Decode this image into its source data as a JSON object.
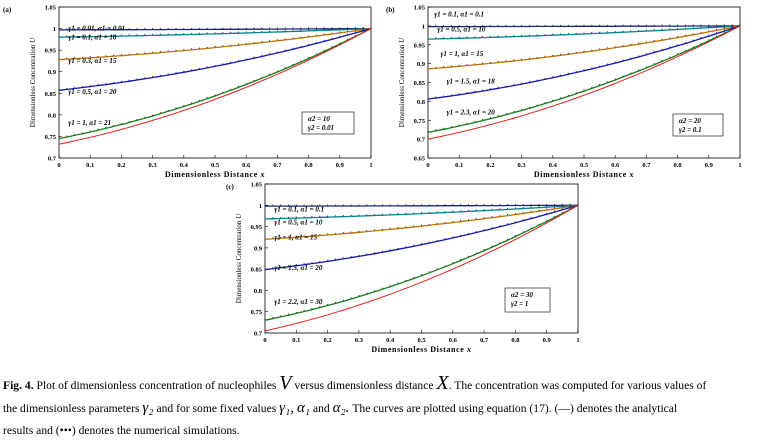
{
  "chart_data": [
    {
      "type": "line",
      "panel_label": "(a)",
      "xlabel": "Dimensionless Distance",
      "xlabel_symbol": "x",
      "ylabel": "Dimensionless Concentration",
      "ylabel_symbol": "U",
      "xlim": [
        0,
        1
      ],
      "ylim": [
        0.7,
        1.05
      ],
      "xticks": [
        "0",
        "0.1",
        "0.2",
        "0.3",
        "0.4",
        "0.5",
        "0.6",
        "0.7",
        "0.8",
        "0.9",
        "1"
      ],
      "yticks": [
        "0.7",
        "0.75",
        "0.8",
        "0.85",
        "0.9",
        "0.95",
        "1",
        "1.05"
      ],
      "series_note": "(—) analytical, (•••) numerical",
      "series": [
        {
          "name": "γ1 = 0.01, α1 = 0.01",
          "u0": 0.997,
          "color": "#1a237e"
        },
        {
          "name": "γ1 = 0.1, α1 = 10",
          "u0": 0.98,
          "color": "#00838f"
        },
        {
          "name": "γ1 = 0.3, α1 = 15",
          "u0": 0.928,
          "color": "#c07000"
        },
        {
          "name": "γ1 = 0.5, α1 = 20",
          "u0": 0.857,
          "color": "#1515b8"
        },
        {
          "name": "γ1 = 1, α1 = 21",
          "u0": 0.745,
          "color": "#1b7a1b"
        },
        {
          "name": "analytical lower",
          "u0": 0.732,
          "color": "#e02020"
        }
      ],
      "fixed_params": [
        "α2 = 10",
        "γ2 = 0.01"
      ]
    },
    {
      "type": "line",
      "panel_label": "(b)",
      "xlabel": "Dimensionless Distance",
      "xlabel_symbol": "x",
      "ylabel": "Dimensionless Concentration",
      "ylabel_symbol": "U",
      "xlim": [
        0,
        1
      ],
      "ylim": [
        0.65,
        1.05
      ],
      "xticks": [
        "0",
        "0.1",
        "0.2",
        "0.3",
        "0.4",
        "0.5",
        "0.6",
        "0.7",
        "0.8",
        "0.9",
        "1"
      ],
      "yticks": [
        "0.65",
        "0.7",
        "0.75",
        "0.8",
        "0.85",
        "0.9",
        "0.95",
        "1",
        "1.05"
      ],
      "series_note": "(—) analytical, (•••) numerical",
      "series": [
        {
          "name": "γ1 = 0.1, α1 = 0.1",
          "u0": 0.998,
          "color": "#1a237e"
        },
        {
          "name": "γ1 = 0.5, α1 = 10",
          "u0": 0.965,
          "color": "#00838f"
        },
        {
          "name": "γ1 = 1, α1 = 15",
          "u0": 0.886,
          "color": "#c07000"
        },
        {
          "name": "γ1 = 1.5, α1 = 18",
          "u0": 0.806,
          "color": "#1515b8"
        },
        {
          "name": "γ1 = 2.3, α1 = 20",
          "u0": 0.718,
          "color": "#1b7a1b"
        },
        {
          "name": "analytical lower",
          "u0": 0.7,
          "color": "#e02020"
        }
      ],
      "fixed_params": [
        "α2 = 20",
        "γ2 = 0.1"
      ]
    },
    {
      "type": "line",
      "panel_label": "(c)",
      "xlabel": "Dimensionless Distance",
      "xlabel_symbol": "x",
      "ylabel": "Dimensionless Concentration",
      "ylabel_symbol": "U",
      "xlim": [
        0,
        1
      ],
      "ylim": [
        0.7,
        1.05
      ],
      "xticks": [
        "0",
        "0.1",
        "0.2",
        "0.3",
        "0.4",
        "0.5",
        "0.6",
        "0.7",
        "0.8",
        "0.9",
        "1"
      ],
      "yticks": [
        "0.7",
        "0.75",
        "0.8",
        "0.85",
        "0.9",
        "0.95",
        "1",
        "1.05"
      ],
      "series_note": "(—) analytical, (•••) numerical",
      "series": [
        {
          "name": "γ1 = 0.1, α1 = 0.1",
          "u0": 0.998,
          "color": "#1a237e"
        },
        {
          "name": "γ1 = 0.5, α1 = 10",
          "u0": 0.968,
          "color": "#00838f"
        },
        {
          "name": "γ1 = 1, α1 = 15",
          "u0": 0.92,
          "color": "#c07000"
        },
        {
          "name": "γ1 = 1.5, α1 = 20",
          "u0": 0.849,
          "color": "#1515b8"
        },
        {
          "name": "γ1 = 2.2, α1 = 30",
          "u0": 0.73,
          "color": "#1b7a1b"
        },
        {
          "name": "analytical lower",
          "u0": 0.705,
          "color": "#e02020"
        }
      ],
      "fixed_params": [
        "α2 = 30",
        "γ2 = 1"
      ]
    }
  ],
  "caption": {
    "label": "Fig. 4.",
    "text_1": "Plot of dimensionless concentration of nucleophiles",
    "symbol_V": "V",
    "text_2": "versus dimensionless distance",
    "symbol_X": "X",
    "text_3": ". The concentration was computed for various values of",
    "text_4": "the dimensionless parameters",
    "symbol_g2": "γ₂",
    "text_5": "and for some fixed values",
    "symbol_g1": "γ₁,",
    "symbol_a1": "α₁",
    "text_and": "and",
    "symbol_a2": "α₂.",
    "text_6": "The curves are plotted using equation (17). (—) denotes the analytical",
    "text_7": "results and (•••) denotes the numerical simulations."
  }
}
